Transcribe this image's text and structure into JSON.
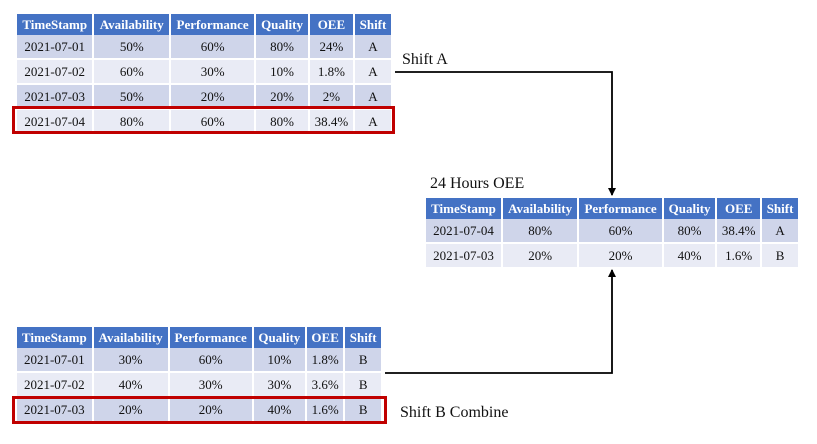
{
  "columns": [
    "TimeStamp",
    "Availability",
    "Performance",
    "Quality",
    "OEE",
    "Shift"
  ],
  "shift_a_table": {
    "rows": [
      [
        "2021-07-01",
        "50%",
        "60%",
        "80%",
        "24%",
        "A"
      ],
      [
        "2021-07-02",
        "60%",
        "30%",
        "10%",
        "1.8%",
        "A"
      ],
      [
        "2021-07-03",
        "50%",
        "20%",
        "20%",
        "2%",
        "A"
      ],
      [
        "2021-07-04",
        "80%",
        "60%",
        "80%",
        "38.4%",
        "A"
      ]
    ]
  },
  "shift_b_table": {
    "rows": [
      [
        "2021-07-01",
        "30%",
        "60%",
        "10%",
        "1.8%",
        "B"
      ],
      [
        "2021-07-02",
        "40%",
        "30%",
        "30%",
        "3.6%",
        "B"
      ],
      [
        "2021-07-03",
        "20%",
        "20%",
        "40%",
        "1.6%",
        "B"
      ]
    ]
  },
  "oee_table": {
    "title": "24 Hours OEE",
    "rows": [
      [
        "2021-07-04",
        "80%",
        "60%",
        "80%",
        "38.4%",
        "A"
      ],
      [
        "2021-07-03",
        "20%",
        "20%",
        "40%",
        "1.6%",
        "B"
      ]
    ]
  },
  "labels": {
    "shift_a": "Shift A",
    "shift_b": "Shift B Combine"
  },
  "colors": {
    "header": "#4472c4",
    "row_dark": "#cfd5ea",
    "row_light": "#e9ebf5",
    "highlight": "#c00000"
  }
}
